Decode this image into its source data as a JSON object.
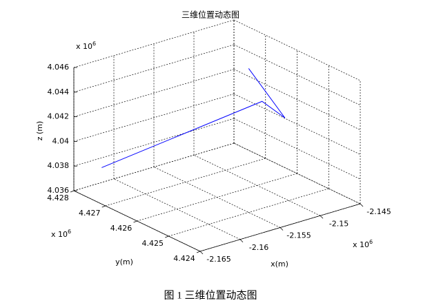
{
  "chart_data": {
    "type": "line3d",
    "title": "三维位置动态图",
    "xlabel": "x(m)",
    "ylabel": "y(m)",
    "zlabel": "z (m)",
    "axis_multiplier": {
      "base": "x 10",
      "exponent": "6"
    },
    "xlim": [
      -2.165,
      -2.145
    ],
    "xticks": [
      -2.165,
      -2.16,
      -2.155,
      -2.15,
      -2.145
    ],
    "ylim": [
      4.424,
      4.428
    ],
    "yticks": [
      4.424,
      4.425,
      4.426,
      4.427,
      4.428
    ],
    "zlim": [
      4.036,
      4.046
    ],
    "zticks": [
      4.036,
      4.038,
      4.04,
      4.042,
      4.044,
      4.046
    ],
    "grid": true,
    "series": [
      {
        "color": "#0000ff",
        "x": [
          -2.1631,
          -2.1478,
          -2.1481,
          -2.1479
        ],
        "y": [
          4.4276,
          4.4264,
          4.4256,
          4.4268
        ],
        "z": [
          4.038,
          4.0419,
          4.0416,
          4.0441
        ]
      }
    ]
  },
  "caption": "图 1  三维位置动态图"
}
